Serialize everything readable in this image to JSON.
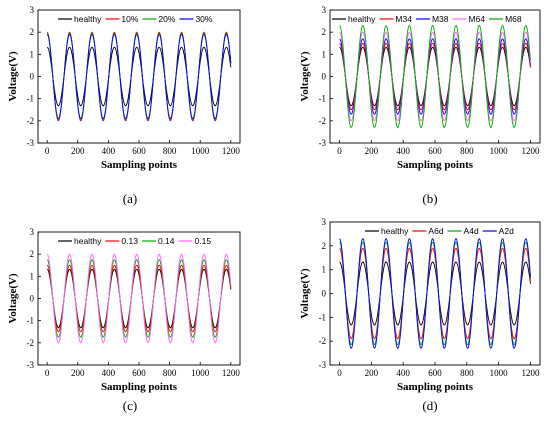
{
  "chart_data": [
    {
      "type": "line",
      "caption": "(a)",
      "xlabel": "Sampling points",
      "ylabel": "Voltage(V)",
      "xlim": [
        -60,
        1260
      ],
      "ylim": [
        -3,
        3
      ],
      "xticks": [
        0,
        200,
        400,
        600,
        800,
        1000,
        1200
      ],
      "yticks": [
        -3,
        -2,
        -1,
        0,
        1,
        2,
        3
      ],
      "x_range": [
        0,
        1200
      ],
      "periods": 8.2,
      "legend_position": "top",
      "series": [
        {
          "name": "healthy",
          "amplitude": 1.32,
          "color": "#000000"
        },
        {
          "name": "10%",
          "amplitude": 2.0,
          "color": "#ff0000"
        },
        {
          "name": "20%",
          "amplitude": 1.95,
          "color": "#00aa00"
        },
        {
          "name": "30%",
          "amplitude": 1.9,
          "color": "#0000ff"
        }
      ]
    },
    {
      "type": "line",
      "caption": "(b)",
      "xlabel": "Sampling points",
      "ylabel": "Voltage(V)",
      "xlim": [
        -60,
        1260
      ],
      "ylim": [
        -3,
        3
      ],
      "xticks": [
        0,
        200,
        400,
        600,
        800,
        1000,
        1200
      ],
      "yticks": [
        -3,
        -2,
        -1,
        0,
        1,
        2,
        3
      ],
      "x_range": [
        0,
        1200
      ],
      "periods": 8.2,
      "legend_position": "top",
      "series": [
        {
          "name": "healthy",
          "amplitude": 1.32,
          "color": "#000000"
        },
        {
          "name": "M34",
          "amplitude": 1.5,
          "color": "#ff0000"
        },
        {
          "name": "M38",
          "amplitude": 1.7,
          "color": "#0000ff"
        },
        {
          "name": "M64",
          "amplitude": 2.0,
          "color": "#ff66ff"
        },
        {
          "name": "M68",
          "amplitude": 2.3,
          "color": "#00aa00"
        }
      ]
    },
    {
      "type": "line",
      "caption": "(c)",
      "xlabel": "Sampling points",
      "ylabel": "Voltage(V)",
      "xlim": [
        -60,
        1260
      ],
      "ylim": [
        -3,
        3
      ],
      "xticks": [
        0,
        200,
        400,
        600,
        800,
        1000,
        1200
      ],
      "yticks": [
        -3,
        -2,
        -1,
        0,
        1,
        2,
        3
      ],
      "x_range": [
        0,
        1200
      ],
      "periods": 8.2,
      "legend_position": "top",
      "series": [
        {
          "name": "healthy",
          "amplitude": 1.32,
          "color": "#000000"
        },
        {
          "name": "0.13",
          "amplitude": 1.5,
          "color": "#ff0000"
        },
        {
          "name": "0.14",
          "amplitude": 1.75,
          "color": "#00aa00"
        },
        {
          "name": "0.15",
          "amplitude": 2.0,
          "color": "#ff66ff"
        }
      ]
    },
    {
      "type": "line",
      "caption": "(d)",
      "xlabel": "Sampling points",
      "ylabel": "Voltage(V)",
      "xlim": [
        -60,
        1260
      ],
      "ylim": [
        -3,
        3
      ],
      "xticks": [
        0,
        200,
        400,
        600,
        800,
        1000,
        1200
      ],
      "yticks": [
        -3,
        -2,
        -1,
        0,
        1,
        2,
        3
      ],
      "x_range": [
        0,
        1200
      ],
      "periods": 8.2,
      "legend_position": "top",
      "series": [
        {
          "name": "healthy",
          "amplitude": 1.32,
          "color": "#000000"
        },
        {
          "name": "A6d",
          "amplitude": 1.9,
          "color": "#ff0000"
        },
        {
          "name": "A4d",
          "amplitude": 2.15,
          "color": "#00aa00"
        },
        {
          "name": "A2d",
          "amplitude": 2.3,
          "color": "#0000ff"
        }
      ]
    }
  ]
}
